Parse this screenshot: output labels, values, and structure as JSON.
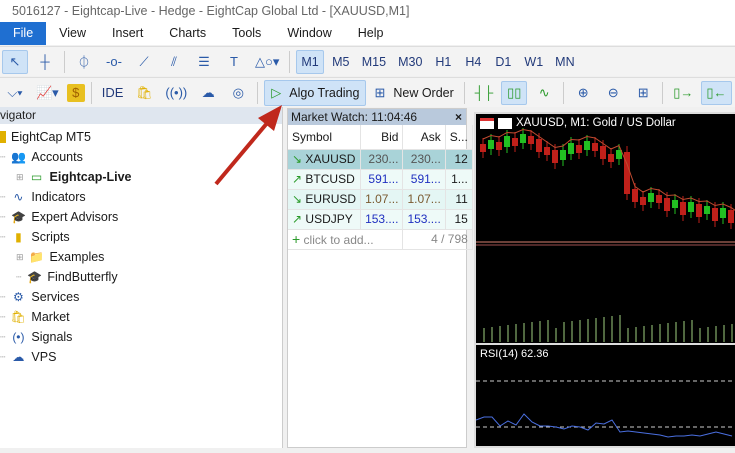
{
  "window": {
    "title": "5016127 - Eightcap-Live - Hedge - EightCap Global Ltd - [XAUUSD,M1]"
  },
  "menu": [
    "File",
    "View",
    "Insert",
    "Charts",
    "Tools",
    "Window",
    "Help"
  ],
  "timeframes": [
    "M1",
    "M5",
    "M15",
    "M30",
    "H1",
    "H4",
    "D1",
    "W1",
    "MN"
  ],
  "toolbar": {
    "ide": "IDE",
    "algo_trading": "Algo Trading",
    "new_order": "New Order"
  },
  "navigator": {
    "title": "vigator",
    "root": "EightCap MT5",
    "items": [
      {
        "label": "Accounts",
        "icon": "accounts-icon"
      },
      {
        "label": "Eightcap-Live",
        "icon": "account-icon",
        "bold": true
      },
      {
        "label": "Indicators",
        "icon": "indicators-icon"
      },
      {
        "label": "Expert Advisors",
        "icon": "expert-icon"
      },
      {
        "label": "Scripts",
        "icon": "scripts-icon"
      },
      {
        "label": "Examples",
        "icon": "folder-icon"
      },
      {
        "label": "FindButterfly",
        "icon": "script-icon"
      },
      {
        "label": "Services",
        "icon": "services-icon"
      },
      {
        "label": "Market",
        "icon": "market-icon"
      },
      {
        "label": "Signals",
        "icon": "signals-icon"
      },
      {
        "label": "VPS",
        "icon": "vps-icon"
      }
    ]
  },
  "market_watch": {
    "title": "Market Watch: 11:04:46",
    "columns": [
      "Symbol",
      "Bid",
      "Ask",
      "S..."
    ],
    "rows": [
      {
        "dir": "down",
        "symbol": "XAUUSD",
        "bid": "230...",
        "ask": "230...",
        "spread": "12"
      },
      {
        "dir": "up",
        "symbol": "BTCUSD",
        "bid": "591...",
        "ask": "591...",
        "spread": "1..."
      },
      {
        "dir": "down",
        "symbol": "EURUSD",
        "bid": "1.07...",
        "ask": "1.07...",
        "spread": "11"
      },
      {
        "dir": "up",
        "symbol": "USDJPY",
        "bid": "153....",
        "ask": "153....",
        "spread": "15"
      }
    ],
    "add": "click to add...",
    "count": "4 / 798"
  },
  "chart": {
    "title": "XAUUSD, M1:  Gold / US Dollar",
    "rsi": "RSI(14) 62.36"
  },
  "colors": {
    "accent": "#1f6fd1",
    "bull": "#22c022",
    "bear": "#c0201a",
    "rsi": "#4a6fe0",
    "arrow": "#c0281c"
  }
}
